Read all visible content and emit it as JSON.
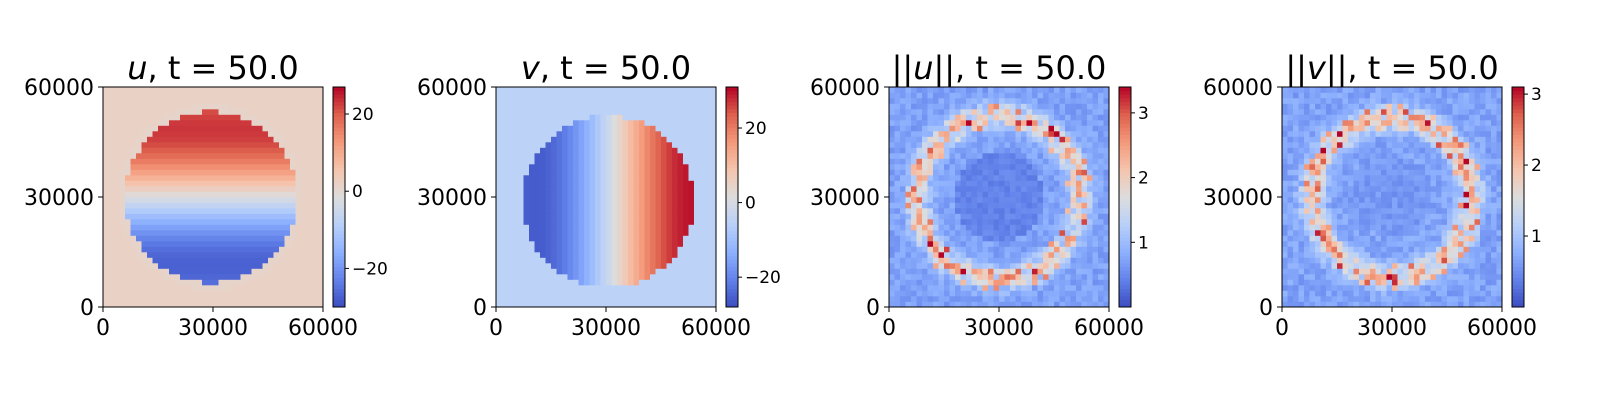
{
  "chart_data": [
    {
      "type": "heatmap",
      "title_var": "u",
      "title_time": "t = 50.0",
      "xticks": [
        "0",
        "30000",
        "60000"
      ],
      "yticks": [
        "0",
        "30000",
        "60000"
      ],
      "xlim": [
        0,
        60000
      ],
      "ylim": [
        0,
        60000
      ],
      "colormap": "coolwarm",
      "clim": [
        -30,
        27
      ],
      "colorbar_ticks": [
        {
          "value": -20,
          "label": "−20"
        },
        {
          "value": 0,
          "label": "0"
        },
        {
          "value": 20,
          "label": "20"
        }
      ],
      "field": "uplume"
    },
    {
      "type": "heatmap",
      "title_var": "v",
      "title_time": "t = 50.0",
      "xticks": [
        "0",
        "30000",
        "60000"
      ],
      "yticks": [
        "0",
        "30000",
        "60000"
      ],
      "xlim": [
        0,
        60000
      ],
      "ylim": [
        0,
        60000
      ],
      "colormap": "coolwarm",
      "clim": [
        -28,
        31
      ],
      "colorbar_ticks": [
        {
          "value": -20,
          "label": "−20"
        },
        {
          "value": 0,
          "label": "0"
        },
        {
          "value": 20,
          "label": "20"
        }
      ],
      "field": "vplume"
    },
    {
      "type": "heatmap",
      "title_var": "||u||",
      "title_time": "t = 50.0",
      "xticks": [
        "0",
        "30000",
        "60000"
      ],
      "yticks": [
        "0",
        "30000",
        "60000"
      ],
      "xlim": [
        0,
        60000
      ],
      "ylim": [
        0,
        60000
      ],
      "colormap": "coolwarm",
      "clim": [
        0,
        3.4
      ],
      "colorbar_ticks": [
        {
          "value": 1,
          "label": "1"
        },
        {
          "value": 2,
          "label": "2"
        },
        {
          "value": 3,
          "label": "3"
        }
      ],
      "field": "uerr"
    },
    {
      "type": "heatmap",
      "title_var": "||v||",
      "title_time": "t = 50.0",
      "xticks": [
        "0",
        "30000",
        "60000"
      ],
      "yticks": [
        "0",
        "30000",
        "60000"
      ],
      "xlim": [
        0,
        60000
      ],
      "ylim": [
        0,
        60000
      ],
      "colormap": "coolwarm",
      "clim": [
        0,
        3.1
      ],
      "colorbar_ticks": [
        {
          "value": 1,
          "label": "1"
        },
        {
          "value": 2,
          "label": "2"
        },
        {
          "value": 3,
          "label": "3"
        }
      ],
      "field": "verr"
    }
  ]
}
